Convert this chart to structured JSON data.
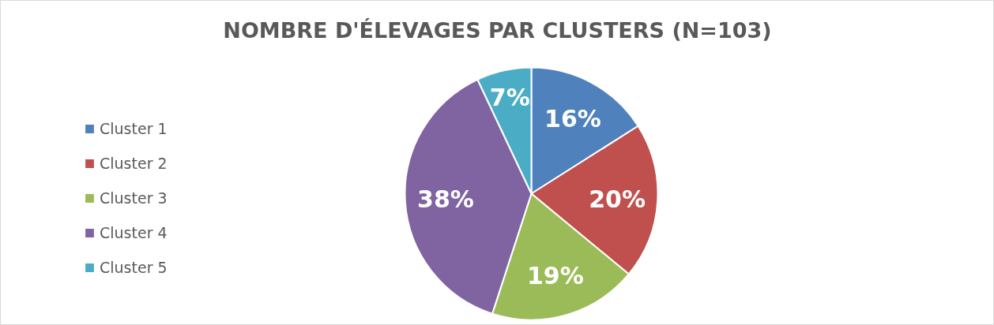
{
  "chart_data": {
    "type": "pie",
    "title": "NOMBRE D'ÉLEVAGES PAR CLUSTERS (N=103)",
    "categories": [
      "Cluster 1",
      "Cluster 2",
      "Cluster 3",
      "Cluster 4",
      "Cluster 5"
    ],
    "values": [
      16,
      20,
      19,
      38,
      7
    ],
    "colors": [
      "#4f81bd",
      "#c0504d",
      "#9bbb59",
      "#8064a2",
      "#4bacc6"
    ],
    "value_labels": [
      "16%",
      "20%",
      "19%",
      "38%",
      "7%"
    ],
    "legend": "left"
  }
}
